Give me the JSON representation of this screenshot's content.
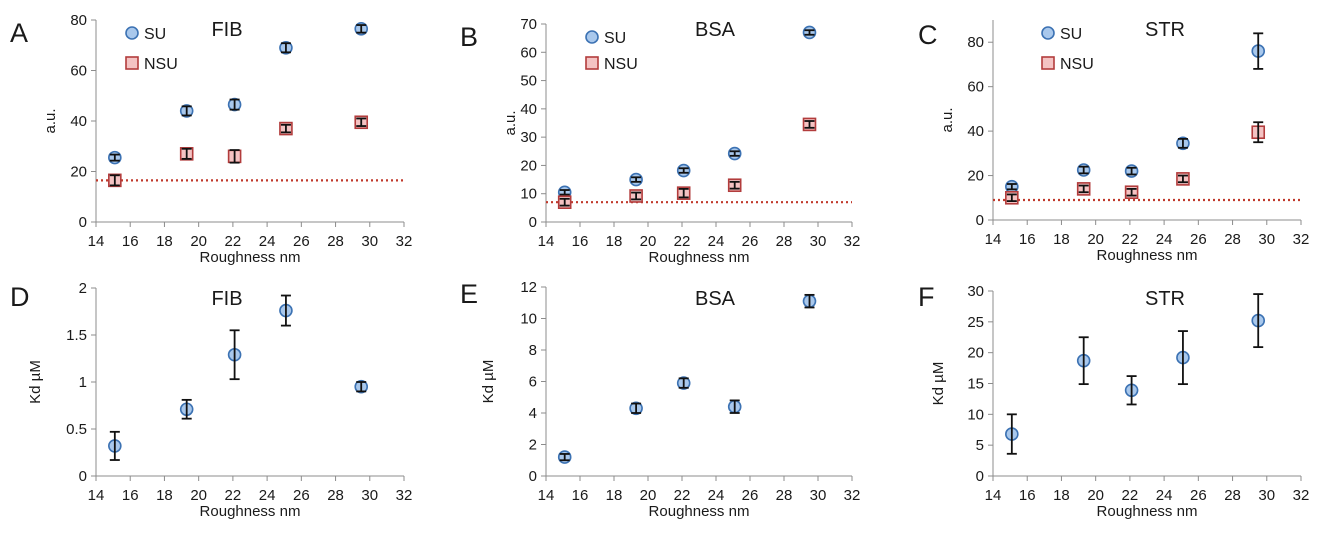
{
  "colors": {
    "su_fill": "#a9c8ec",
    "su_stroke": "#3c72b3",
    "nsu_fill": "#f4c3c3",
    "nsu_stroke": "#b23c3c",
    "errorbar": "#111111",
    "threshold": "#c0392b",
    "axis": "#8c8c8c"
  },
  "chart_data": [
    {
      "panel": "A",
      "type": "scatter",
      "title": "FIB",
      "xlabel": "Roughness nm",
      "ylabel": "a.u.",
      "xlim": [
        14,
        32
      ],
      "ylim": [
        0,
        80
      ],
      "xticks": [
        14,
        16,
        18,
        20,
        22,
        24,
        26,
        28,
        30,
        32
      ],
      "yticks": [
        0,
        20,
        40,
        60,
        80
      ],
      "threshold": 16.5,
      "legend_position": "top-left",
      "series": [
        {
          "name": "SU",
          "marker": "circle",
          "x": [
            15.1,
            19.3,
            22.1,
            25.1,
            29.5
          ],
          "y": [
            25.5,
            44,
            46.5,
            69,
            76.5
          ],
          "err": [
            1.2,
            1.8,
            2,
            1.8,
            1.5
          ]
        },
        {
          "name": "NSU",
          "marker": "square",
          "x": [
            15.1,
            19.3,
            22.1,
            25.1,
            29.5
          ],
          "y": [
            16.5,
            27,
            26,
            37,
            39.5
          ],
          "err": [
            2,
            2,
            2.5,
            1.5,
            1.5
          ]
        }
      ]
    },
    {
      "panel": "B",
      "type": "scatter",
      "title": "BSA",
      "xlabel": "Roughness nm",
      "ylabel": "a.u.",
      "xlim": [
        14,
        32
      ],
      "ylim": [
        0,
        70
      ],
      "xticks": [
        14,
        16,
        18,
        20,
        22,
        24,
        26,
        28,
        30,
        32
      ],
      "yticks": [
        0,
        10,
        20,
        30,
        40,
        50,
        60,
        70
      ],
      "threshold": 7,
      "legend_position": "top-left",
      "series": [
        {
          "name": "SU",
          "marker": "circle",
          "x": [
            15.1,
            19.3,
            22.1,
            25.1,
            29.5
          ],
          "y": [
            10.5,
            15,
            18.2,
            24.2,
            67
          ],
          "err": [
            0.8,
            0.8,
            0.8,
            0.8,
            0.8
          ]
        },
        {
          "name": "NSU",
          "marker": "square",
          "x": [
            15.1,
            19.3,
            22.1,
            25.1,
            29.5
          ],
          "y": [
            7,
            9.2,
            10.2,
            13,
            34.5
          ],
          "err": [
            1.2,
            1.2,
            1.5,
            1.2,
            1.2
          ]
        }
      ]
    },
    {
      "panel": "C",
      "type": "scatter",
      "title": "STR",
      "xlabel": "Roughness nm",
      "ylabel": "a.u.",
      "xlim": [
        14,
        32
      ],
      "ylim": [
        0,
        90
      ],
      "xticks": [
        14,
        16,
        18,
        20,
        22,
        24,
        26,
        28,
        30,
        32
      ],
      "yticks": [
        0,
        20,
        40,
        60,
        80
      ],
      "threshold": 9,
      "legend_position": "top-left",
      "series": [
        {
          "name": "SU",
          "marker": "circle",
          "x": [
            15.1,
            19.3,
            22.1,
            25.1,
            29.5
          ],
          "y": [
            15,
            22.5,
            22,
            34.5,
            76
          ],
          "err": [
            1.2,
            1.5,
            1.5,
            2,
            8
          ]
        },
        {
          "name": "NSU",
          "marker": "square",
          "x": [
            15.1,
            19.3,
            22.1,
            25.1,
            29.5
          ],
          "y": [
            10,
            14,
            12.5,
            18.5,
            39.5
          ],
          "err": [
            1.5,
            1.5,
            1.5,
            1.5,
            4.5
          ]
        }
      ]
    },
    {
      "panel": "D",
      "type": "scatter",
      "title": "FIB",
      "xlabel": "Roughness nm",
      "ylabel": "Kd µM",
      "xlim": [
        14,
        32
      ],
      "ylim": [
        0,
        2
      ],
      "xticks": [
        14,
        16,
        18,
        20,
        22,
        24,
        26,
        28,
        30,
        32
      ],
      "yticks": [
        0,
        0.5,
        1,
        1.5,
        2
      ],
      "threshold": null,
      "series": [
        {
          "name": "",
          "marker": "circle",
          "x": [
            15.1,
            19.3,
            22.1,
            25.1,
            29.5
          ],
          "y": [
            0.32,
            0.71,
            1.29,
            1.76,
            0.95
          ],
          "err": [
            0.15,
            0.1,
            0.26,
            0.16,
            0.05
          ]
        }
      ]
    },
    {
      "panel": "E",
      "type": "scatter",
      "title": "BSA",
      "xlabel": "Roughness nm",
      "ylabel": "Kd µM",
      "xlim": [
        14,
        32
      ],
      "ylim": [
        0,
        12
      ],
      "xticks": [
        14,
        16,
        18,
        20,
        22,
        24,
        26,
        28,
        30,
        32
      ],
      "yticks": [
        0,
        2,
        4,
        6,
        8,
        10,
        12
      ],
      "threshold": null,
      "series": [
        {
          "name": "",
          "marker": "circle",
          "x": [
            15.1,
            19.3,
            22.1,
            25.1,
            29.5
          ],
          "y": [
            1.2,
            4.3,
            5.9,
            4.4,
            11.1
          ],
          "err": [
            0.2,
            0.3,
            0.3,
            0.4,
            0.4
          ]
        }
      ]
    },
    {
      "panel": "F",
      "type": "scatter",
      "title": "STR",
      "xlabel": "Roughness nm",
      "ylabel": "Kd µM",
      "xlim": [
        14,
        32
      ],
      "ylim": [
        0,
        30
      ],
      "xticks": [
        14,
        16,
        18,
        20,
        22,
        24,
        26,
        28,
        30,
        32
      ],
      "yticks": [
        0,
        5,
        10,
        15,
        20,
        25,
        30
      ],
      "threshold": null,
      "series": [
        {
          "name": "",
          "marker": "circle",
          "x": [
            15.1,
            19.3,
            22.1,
            25.1,
            29.5
          ],
          "y": [
            6.8,
            18.7,
            13.9,
            19.2,
            25.2
          ],
          "err": [
            3.2,
            3.8,
            2.3,
            4.3,
            4.3
          ]
        }
      ]
    }
  ]
}
